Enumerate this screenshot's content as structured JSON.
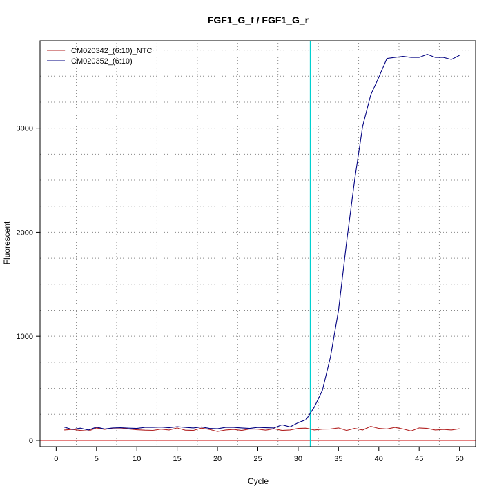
{
  "chart_data": {
    "type": "line",
    "title": "FGF1_G_f / FGF1_G_r",
    "xlabel": "Cycle",
    "ylabel": "Fluorescent",
    "xlim": [
      -2,
      52
    ],
    "ylim": [
      -60,
      3840
    ],
    "x_ticks": [
      0,
      5,
      10,
      15,
      20,
      25,
      30,
      35,
      40,
      45,
      50
    ],
    "y_ticks": [
      0,
      1000,
      2000,
      3000
    ],
    "grid": true,
    "threshold_line": {
      "axis": "y",
      "value": 0,
      "color": "#cc0000"
    },
    "cycle_marker": {
      "axis": "x",
      "value": 31.5,
      "color": "#00d0d0"
    },
    "legend_placement": "top-left",
    "x": [
      1,
      2,
      3,
      4,
      5,
      6,
      7,
      8,
      9,
      10,
      11,
      12,
      13,
      14,
      15,
      16,
      17,
      18,
      19,
      20,
      21,
      22,
      23,
      24,
      25,
      26,
      27,
      28,
      29,
      30,
      31,
      32,
      33,
      34,
      35,
      36,
      37,
      38,
      39,
      40,
      41,
      42,
      43,
      44,
      45,
      46,
      47,
      48,
      49,
      50
    ],
    "series": [
      {
        "name": "CM020342_(6:10)_NTC",
        "color": "#b22222",
        "values": [
          100,
          105,
          95,
          90,
          120,
          105,
          118,
          120,
          110,
          102,
          98,
          96,
          108,
          100,
          120,
          98,
          95,
          118,
          105,
          85,
          100,
          105,
          95,
          110,
          108,
          98,
          112,
          95,
          100,
          115,
          118,
          100,
          108,
          110,
          120,
          95,
          115,
          100,
          135,
          115,
          110,
          125,
          110,
          90,
          120,
          115,
          100,
          105,
          100,
          112
        ]
      },
      {
        "name": "CM020352_(6:10)",
        "color": "#000080",
        "values": [
          128,
          105,
          118,
          100,
          128,
          110,
          120,
          122,
          118,
          115,
          125,
          125,
          128,
          122,
          132,
          125,
          120,
          130,
          115,
          112,
          125,
          125,
          120,
          115,
          125,
          122,
          120,
          150,
          130,
          170,
          200,
          320,
          480,
          800,
          1250,
          1900,
          2500,
          3020,
          3320,
          3490,
          3670,
          3680,
          3690,
          3680,
          3680,
          3710,
          3680,
          3680,
          3660,
          3700
        ]
      }
    ]
  }
}
